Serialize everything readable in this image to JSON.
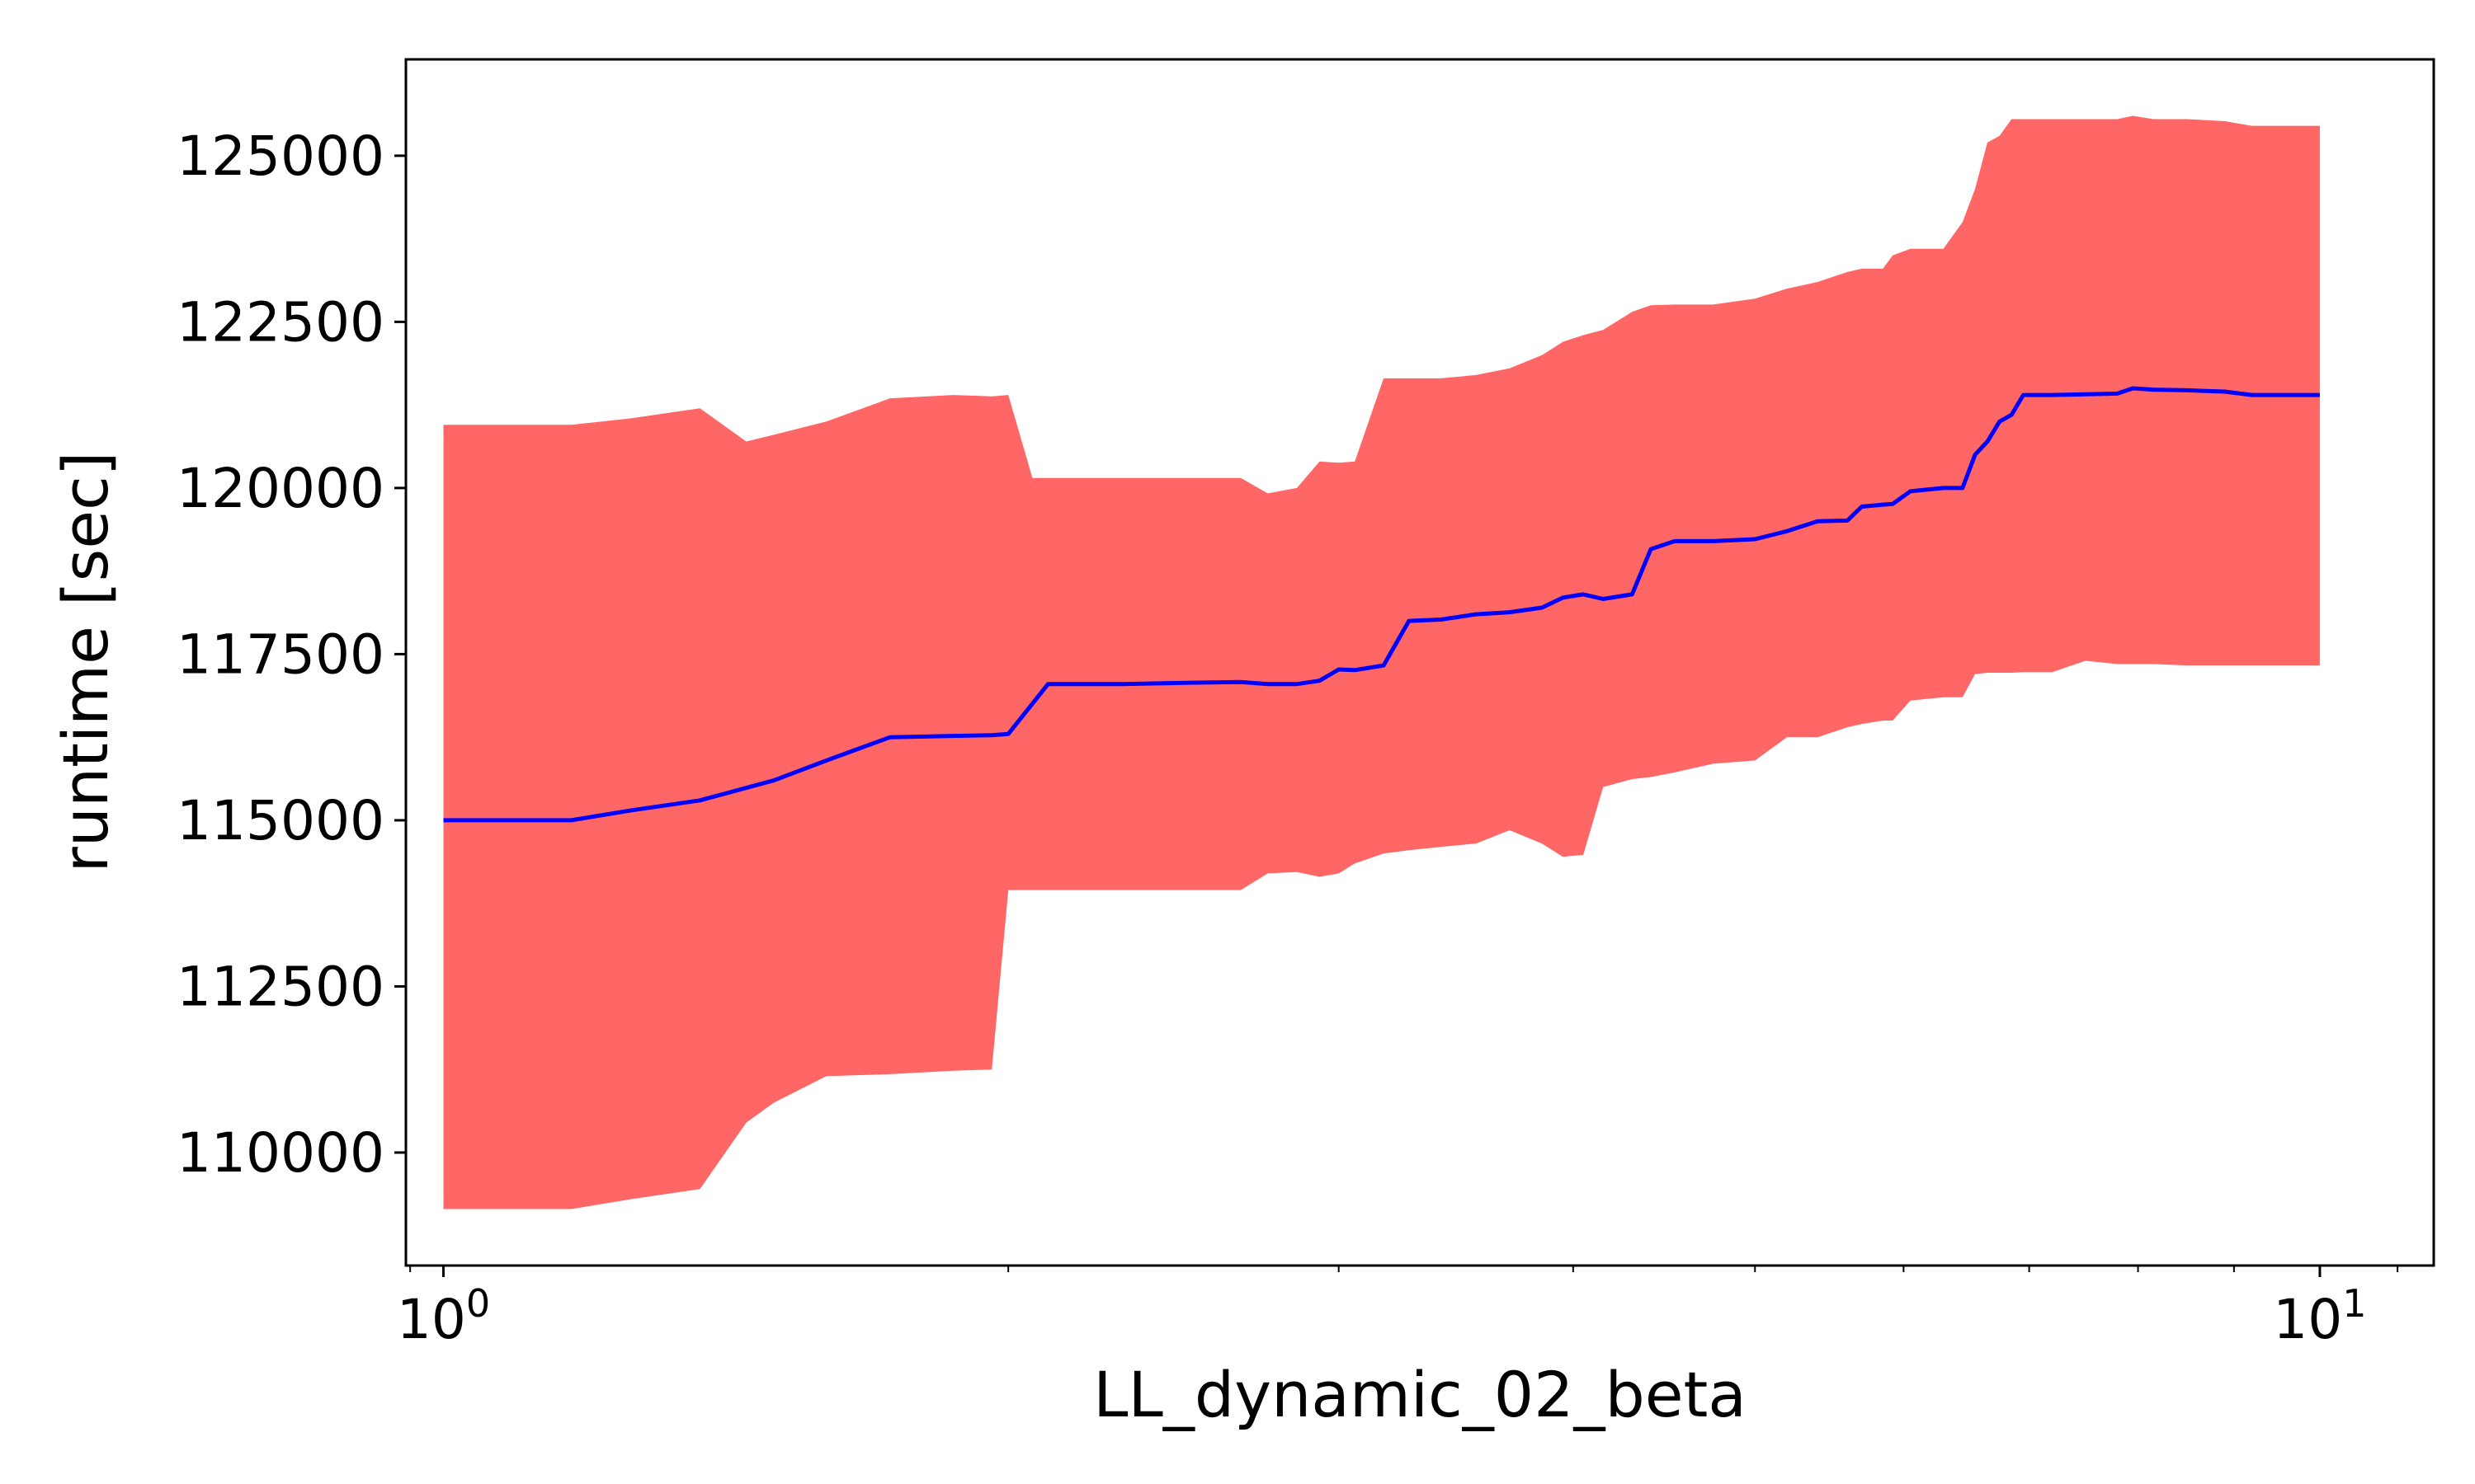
{
  "chart_data": {
    "type": "area",
    "title": "",
    "xlabel": "LL_dynamic_02_beta",
    "ylabel": "runtime [sec]",
    "xscale": "log",
    "xlim": [
      0.955,
      11.5
    ],
    "ylim": [
      108300,
      126450
    ],
    "grid": false,
    "legend": "none",
    "x_major_ticks": [
      {
        "value": 1,
        "base": "10",
        "exp": "0"
      },
      {
        "value": 10,
        "base": "10",
        "exp": "1"
      }
    ],
    "x_minor_ticks": [
      2,
      3,
      4,
      5,
      6,
      7,
      8,
      9
    ],
    "y_ticks": [
      110000,
      112500,
      115000,
      117500,
      120000,
      122500,
      125000
    ],
    "y_tick_labels": [
      "110000",
      "112500",
      "115000",
      "117500",
      "120000",
      "122500",
      "125000"
    ],
    "series": [
      {
        "role": "mean",
        "color": "#0000ff",
        "x": [
          1.0,
          1.09,
          1.17,
          1.26,
          1.37,
          1.5,
          1.6,
          1.73,
          1.87,
          1.96,
          2.0,
          2.1,
          2.3,
          2.5,
          2.66,
          2.75,
          2.85,
          2.93,
          3.0,
          3.06,
          3.17,
          3.27,
          3.4,
          3.55,
          3.7,
          3.85,
          3.95,
          4.05,
          4.15,
          4.3,
          4.4,
          4.53,
          4.75,
          5.0,
          5.2,
          5.4,
          5.6,
          5.7,
          5.85,
          5.92,
          6.05,
          6.3,
          6.45,
          6.55,
          6.65,
          6.75,
          6.85,
          6.95,
          7.2,
          7.5,
          7.8,
          7.95,
          8.15,
          8.5,
          8.9,
          9.2,
          10.0
        ],
        "y": [
          115000,
          115000,
          115000,
          115150,
          115300,
          115600,
          115900,
          116250,
          116270,
          116280,
          116300,
          117050,
          117050,
          117070,
          117080,
          117050,
          117050,
          117100,
          117270,
          117260,
          117330,
          118000,
          118020,
          118100,
          118130,
          118200,
          118350,
          118400,
          118330,
          118400,
          119080,
          119200,
          119200,
          119230,
          119350,
          119500,
          119510,
          119720,
          119750,
          119760,
          119950,
          120000,
          120000,
          120500,
          120700,
          121000,
          121100,
          121400,
          121400,
          121410,
          121420,
          121500,
          121480,
          121470,
          121450,
          121400,
          121400
        ]
      },
      {
        "role": "upper-bound",
        "color": "#ff6666",
        "x": [
          1.0,
          1.09,
          1.17,
          1.26,
          1.37,
          1.45,
          1.5,
          1.6,
          1.73,
          1.87,
          1.96,
          2.0,
          2.06,
          2.1,
          2.3,
          2.5,
          2.66,
          2.75,
          2.85,
          2.93,
          3.0,
          3.06,
          3.17,
          3.27,
          3.4,
          3.55,
          3.7,
          3.85,
          3.95,
          4.05,
          4.15,
          4.3,
          4.4,
          4.53,
          4.75,
          5.0,
          5.2,
          5.4,
          5.6,
          5.7,
          5.85,
          5.92,
          6.05,
          6.3,
          6.45,
          6.55,
          6.65,
          6.75,
          6.85,
          6.95,
          7.2,
          7.5,
          7.8,
          7.95,
          8.15,
          8.5,
          8.9,
          9.2,
          10.0
        ],
        "y": [
          120950,
          120950,
          120950,
          121050,
          121200,
          120700,
          120800,
          121000,
          121350,
          121400,
          121380,
          121400,
          120150,
          120150,
          120150,
          120150,
          120150,
          119920,
          120000,
          120400,
          120380,
          120400,
          121650,
          121650,
          121650,
          121700,
          121800,
          122000,
          122200,
          122300,
          122380,
          122650,
          122750,
          122760,
          122760,
          122850,
          123000,
          123100,
          123250,
          123300,
          123300,
          123500,
          123600,
          123600,
          124000,
          124500,
          125200,
          125300,
          125550,
          125550,
          125550,
          125550,
          125550,
          125600,
          125550,
          125550,
          125520,
          125450,
          125450
        ]
      },
      {
        "role": "lower-bound",
        "color": "#ff6666",
        "x": [
          1.0,
          1.09,
          1.17,
          1.26,
          1.37,
          1.45,
          1.5,
          1.6,
          1.73,
          1.87,
          1.96,
          2.0,
          2.06,
          2.1,
          2.3,
          2.5,
          2.66,
          2.75,
          2.85,
          2.93,
          3.0,
          3.06,
          3.17,
          3.27,
          3.4,
          3.55,
          3.7,
          3.85,
          3.95,
          4.05,
          4.15,
          4.3,
          4.4,
          4.53,
          4.75,
          5.0,
          5.2,
          5.4,
          5.6,
          5.7,
          5.85,
          5.92,
          6.05,
          6.3,
          6.45,
          6.55,
          6.65,
          6.75,
          6.85,
          6.95,
          7.2,
          7.5,
          7.8,
          7.95,
          8.15,
          8.5,
          8.9,
          9.2,
          10.0
        ],
        "y": [
          109150,
          109150,
          109150,
          109300,
          109450,
          110450,
          110750,
          111150,
          111180,
          111230,
          111250,
          113950,
          113950,
          113950,
          113950,
          113950,
          113950,
          114200,
          114220,
          114150,
          114200,
          114350,
          114500,
          114550,
          114600,
          114650,
          114850,
          114650,
          114450,
          114480,
          115500,
          115620,
          115650,
          115720,
          115850,
          115900,
          116250,
          116250,
          116400,
          116450,
          116500,
          116500,
          116800,
          116850,
          116850,
          117200,
          117220,
          117220,
          117220,
          117230,
          117230,
          117400,
          117350,
          117350,
          117350,
          117330,
          117330,
          117330,
          117330
        ]
      }
    ]
  }
}
